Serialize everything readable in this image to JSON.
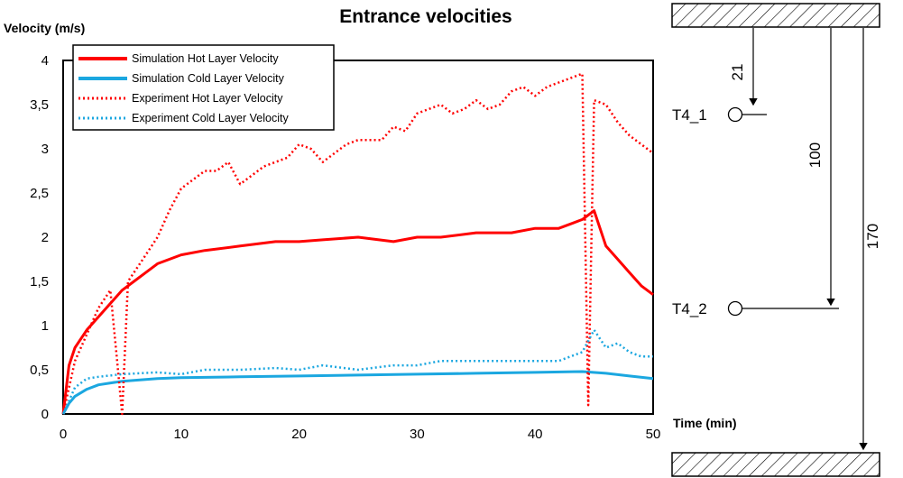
{
  "chart_data": {
    "type": "line",
    "title": "Entrance velocities",
    "ylabel": "Velocity (m/s)",
    "xlabel": "Time (min)",
    "xlim": [
      0,
      50
    ],
    "ylim": [
      0,
      4
    ],
    "x_ticks": [
      "0",
      "10",
      "20",
      "30",
      "40",
      "50"
    ],
    "y_ticks": [
      "0",
      "0,5",
      "1",
      "1,5",
      "2",
      "2,5",
      "3",
      "3,5",
      "4"
    ],
    "grid": false,
    "legend_position": "top-left",
    "series": [
      {
        "name": "Simulation Hot Layer Velocity",
        "color": "#ff0000",
        "style": "solid",
        "x": [
          0,
          0.5,
          1,
          2,
          3,
          4,
          5,
          6,
          7,
          8,
          10,
          12,
          15,
          18,
          20,
          22,
          25,
          28,
          30,
          32,
          35,
          38,
          40,
          42,
          44,
          45,
          46,
          47,
          48,
          49,
          50
        ],
        "y": [
          0,
          0.55,
          0.75,
          0.95,
          1.1,
          1.25,
          1.4,
          1.5,
          1.6,
          1.7,
          1.8,
          1.85,
          1.9,
          1.95,
          1.95,
          1.97,
          2.0,
          1.95,
          2.0,
          2.0,
          2.05,
          2.05,
          2.1,
          2.1,
          2.2,
          2.3,
          1.9,
          1.75,
          1.6,
          1.45,
          1.35
        ]
      },
      {
        "name": "Simulation Cold Layer Velocity",
        "color": "#1ba7e0",
        "style": "solid",
        "x": [
          0,
          0.5,
          1,
          2,
          3,
          5,
          8,
          10,
          15,
          20,
          25,
          30,
          35,
          40,
          44,
          46,
          48,
          50
        ],
        "y": [
          0,
          0.12,
          0.2,
          0.28,
          0.33,
          0.37,
          0.4,
          0.41,
          0.42,
          0.43,
          0.44,
          0.45,
          0.46,
          0.47,
          0.48,
          0.46,
          0.43,
          0.4
        ]
      },
      {
        "name": "Experiment Hot Layer Velocity",
        "color": "#ff0000",
        "style": "dotted",
        "x": [
          0,
          1,
          2,
          3,
          4,
          4.5,
          5,
          5.5,
          6,
          7,
          8,
          9,
          10,
          11,
          12,
          13,
          14,
          15,
          16,
          17,
          18,
          19,
          20,
          21,
          22,
          23,
          24,
          25,
          26,
          27,
          28,
          29,
          30,
          31,
          32,
          33,
          34,
          35,
          36,
          37,
          38,
          39,
          40,
          41,
          42,
          43,
          44,
          44.5,
          45,
          46,
          47,
          48,
          49,
          50
        ],
        "y": [
          0,
          0.6,
          0.9,
          1.2,
          1.4,
          0.7,
          0.0,
          1.5,
          1.6,
          1.8,
          2.0,
          2.3,
          2.55,
          2.65,
          2.75,
          2.75,
          2.85,
          2.6,
          2.7,
          2.8,
          2.85,
          2.9,
          3.05,
          3.0,
          2.85,
          2.95,
          3.05,
          3.1,
          3.1,
          3.1,
          3.25,
          3.2,
          3.4,
          3.45,
          3.5,
          3.4,
          3.45,
          3.55,
          3.45,
          3.5,
          3.65,
          3.7,
          3.6,
          3.7,
          3.75,
          3.8,
          3.85,
          0.1,
          3.55,
          3.5,
          3.3,
          3.15,
          3.05,
          2.95
        ]
      },
      {
        "name": "Experiment Cold Layer Velocity",
        "color": "#1ba7e0",
        "style": "dotted",
        "x": [
          0,
          1,
          2,
          3,
          5,
          8,
          10,
          12,
          15,
          18,
          20,
          22,
          25,
          28,
          30,
          32,
          35,
          38,
          40,
          42,
          43,
          44,
          45,
          46,
          47,
          48,
          49,
          50
        ],
        "y": [
          0,
          0.3,
          0.4,
          0.42,
          0.45,
          0.47,
          0.45,
          0.5,
          0.5,
          0.52,
          0.5,
          0.55,
          0.5,
          0.55,
          0.55,
          0.6,
          0.6,
          0.6,
          0.6,
          0.6,
          0.65,
          0.7,
          0.95,
          0.75,
          0.8,
          0.7,
          0.65,
          0.65
        ]
      }
    ]
  },
  "diagram": {
    "sensor_top_label": "T4_1",
    "sensor_bottom_label": "T4_2",
    "dim_top": "21",
    "dim_mid": "100",
    "dim_full": "170"
  }
}
